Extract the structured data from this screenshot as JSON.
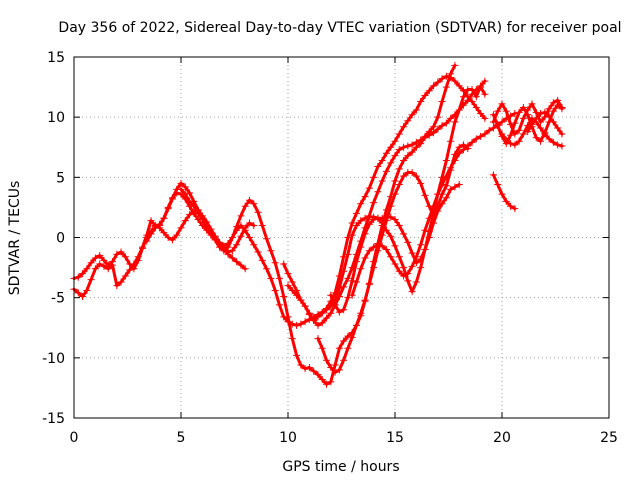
{
  "colors": {
    "series": "#ff0000",
    "grid": "#a0a0a0",
    "axis": "#000000",
    "background": "#ffffff"
  },
  "chart_data": {
    "type": "scatter",
    "title": "Day 356 of 2022, Sidereal Day-to-day VTEC variation (SDTVAR) for receiver poal",
    "xlabel": "GPS time / hours",
    "ylabel": "SDTVAR / TECUs",
    "xlim": [
      0,
      25
    ],
    "ylim": [
      -15,
      15
    ],
    "xticks": [
      0,
      5,
      10,
      15,
      20,
      25
    ],
    "yticks": [
      -15,
      -10,
      -5,
      0,
      5,
      10,
      15
    ],
    "grid": true,
    "marker": "+",
    "series": [
      {
        "name": "s1",
        "x": [
          0.0,
          0.2,
          0.4,
          0.6,
          0.8,
          1.0,
          1.2,
          1.4,
          1.6,
          1.8,
          2.0,
          2.2,
          2.4,
          2.6,
          2.8,
          3.0,
          3.2,
          3.4,
          3.6,
          3.8,
          4.0,
          4.2,
          4.4,
          4.6,
          4.8,
          5.0,
          5.2,
          5.4,
          5.6,
          5.8,
          6.0,
          6.2,
          6.4,
          6.6,
          6.8,
          7.0,
          7.2,
          7.4,
          7.6,
          7.8,
          8.0
        ],
        "y": [
          -3.4,
          -3.3,
          -3.0,
          -2.6,
          -2.1,
          -1.7,
          -1.5,
          -1.9,
          -2.3,
          -2.0,
          -1.4,
          -1.2,
          -1.6,
          -2.2,
          -2.6,
          -1.9,
          -0.9,
          0.0,
          0.5,
          0.9,
          1.0,
          1.6,
          2.5,
          3.3,
          3.7,
          3.6,
          3.2,
          2.6,
          2.0,
          1.5,
          1.0,
          0.6,
          0.2,
          -0.2,
          -0.6,
          -1.0,
          -1.4,
          -1.7,
          -2.0,
          -2.3,
          -2.6
        ]
      },
      {
        "name": "s2",
        "x": [
          0.0,
          0.2,
          0.4,
          0.6,
          0.8,
          1.0,
          1.2,
          1.4,
          1.6,
          1.8,
          2.0,
          2.2,
          2.4,
          2.6,
          2.8,
          3.0,
          3.2,
          3.4,
          3.6,
          3.8,
          4.0,
          4.2,
          4.4,
          4.6,
          4.8,
          5.0,
          5.2,
          5.4,
          5.6,
          5.8,
          6.0,
          6.2,
          6.4,
          6.6,
          6.8,
          7.0,
          7.2,
          7.4,
          7.6,
          7.8,
          8.0,
          8.2,
          8.4
        ],
        "y": [
          -4.3,
          -4.6,
          -4.9,
          -4.4,
          -3.5,
          -2.6,
          -2.2,
          -2.4,
          -2.6,
          -2.3,
          -4.0,
          -3.7,
          -3.2,
          -2.7,
          -2.2,
          -1.6,
          -0.8,
          0.2,
          1.4,
          1.0,
          0.8,
          0.4,
          0.0,
          -0.2,
          0.2,
          0.8,
          1.4,
          1.9,
          2.2,
          2.0,
          1.5,
          0.9,
          0.4,
          -0.1,
          -0.5,
          -0.9,
          -1.2,
          -1.1,
          -0.6,
          0.1,
          0.8,
          1.2,
          1.0
        ]
      },
      {
        "name": "s3",
        "x": [
          3.4,
          3.6,
          3.8,
          4.0,
          4.2,
          4.4,
          4.6,
          4.8,
          5.0,
          5.2,
          5.4,
          5.6,
          5.8,
          6.0,
          6.2,
          6.4,
          6.6,
          6.8,
          7.0,
          7.2,
          7.4,
          7.6,
          7.8,
          8.0,
          8.2,
          8.4,
          8.6,
          8.8,
          9.0,
          9.2,
          9.4,
          9.6,
          9.8,
          10.0,
          10.2,
          10.4,
          10.6,
          10.8,
          11.0,
          11.2,
          11.4,
          11.6,
          11.8,
          12.0,
          12.2,
          12.4,
          12.6,
          12.8,
          13.0,
          13.2,
          13.4,
          13.6,
          13.8,
          14.0,
          14.2,
          14.4,
          14.6,
          14.8,
          15.0,
          15.2,
          15.4,
          15.6,
          15.8,
          16.0,
          16.2,
          16.4,
          16.6,
          16.8,
          17.0,
          17.2,
          17.4,
          17.6,
          17.8
        ],
        "y": [
          -0.3,
          0.3,
          0.8,
          1.1,
          1.6,
          2.4,
          3.2,
          4.0,
          4.5,
          4.2,
          3.7,
          3.0,
          2.3,
          1.6,
          1.0,
          0.4,
          -0.2,
          -0.8,
          -1.1,
          -0.8,
          0.0,
          0.9,
          1.8,
          2.6,
          3.1,
          2.8,
          2.1,
          1.0,
          -0.1,
          -1.1,
          -2.1,
          -3.4,
          -4.9,
          -6.6,
          -8.4,
          -9.8,
          -10.6,
          -10.9,
          -10.8,
          -11.1,
          -11.4,
          -11.8,
          -12.2,
          -12.0,
          -10.6,
          -9.2,
          -8.6,
          -8.2,
          -7.9,
          -7.3,
          -6.5,
          -5.3,
          -3.8,
          -2.0,
          -0.5,
          1.0,
          2.3,
          3.4,
          4.7,
          5.7,
          6.4,
          6.8,
          7.1,
          7.5,
          7.8,
          8.4,
          8.8,
          9.2,
          10.0,
          11.3,
          12.5,
          13.6,
          14.3
        ]
      },
      {
        "name": "s4",
        "x": [
          5.0,
          5.2,
          5.4,
          5.6,
          5.8,
          6.0,
          6.2,
          6.4,
          6.6,
          6.8,
          7.0,
          7.2,
          7.4,
          7.6,
          7.8,
          8.0,
          8.2,
          8.4,
          8.6,
          8.8,
          9.0,
          9.2,
          9.4,
          9.6,
          9.8,
          10.0,
          10.2,
          10.4,
          10.6,
          10.8,
          11.0,
          11.2,
          11.4,
          11.6,
          11.8,
          12.0,
          12.2,
          12.4,
          12.6,
          12.8,
          13.0,
          13.2,
          13.4,
          13.6,
          13.8,
          14.0,
          14.2,
          14.4,
          14.6,
          14.8,
          15.0,
          15.2,
          15.4,
          15.6,
          15.8,
          16.0,
          16.2,
          16.4,
          16.6,
          16.8,
          17.0,
          17.2,
          17.4,
          17.6,
          17.8,
          18.0,
          18.2,
          18.4,
          18.6,
          18.8,
          19.0,
          19.2
        ],
        "y": [
          4.0,
          3.6,
          3.0,
          2.6,
          2.2,
          1.8,
          1.3,
          0.7,
          0.1,
          -0.4,
          -0.7,
          -0.5,
          0.0,
          0.6,
          1.0,
          0.6,
          0.0,
          -0.6,
          -1.2,
          -1.9,
          -2.6,
          -3.4,
          -4.4,
          -5.6,
          -6.6,
          -7.0,
          -7.2,
          -7.3,
          -7.2,
          -7.0,
          -6.8,
          -6.6,
          -6.4,
          -6.2,
          -6.0,
          -5.7,
          -5.2,
          -4.2,
          -2.8,
          -1.4,
          0.2,
          1.0,
          1.4,
          1.6,
          1.7,
          1.7,
          1.6,
          1.2,
          0.6,
          0.1,
          -0.7,
          -1.6,
          -2.5,
          -3.6,
          -4.5,
          -3.7,
          -2.5,
          -1.0,
          0.5,
          2.0,
          3.6,
          5.0,
          6.4,
          8.0,
          9.6,
          10.6,
          11.7,
          12.3,
          12.3,
          11.7,
          12.6,
          13.0
        ]
      },
      {
        "name": "s5",
        "x": [
          9.8,
          10.0,
          10.2,
          10.4,
          10.6,
          10.8,
          11.0,
          11.2,
          11.4,
          11.6,
          11.8,
          12.0,
          12.2,
          12.4,
          12.6,
          12.8,
          13.0,
          13.2,
          13.4,
          13.6,
          13.8,
          14.0,
          14.2,
          14.4,
          14.6,
          14.8,
          15.0,
          15.2,
          15.4,
          15.6,
          15.8,
          16.0,
          16.2,
          16.4,
          16.6,
          16.8,
          17.0,
          17.2,
          17.4,
          17.6,
          17.8,
          18.0,
          18.2,
          18.4,
          18.6,
          18.8,
          19.0,
          19.2
        ],
        "y": [
          -2.2,
          -3.0,
          -3.7,
          -4.4,
          -5.2,
          -5.7,
          -6.4,
          -6.9,
          -6.6,
          -6.3,
          -5.9,
          -5.3,
          -4.6,
          -3.2,
          -1.6,
          0.0,
          1.2,
          2.0,
          2.8,
          3.4,
          4.1,
          5.0,
          5.9,
          6.4,
          7.0,
          7.5,
          8.0,
          8.6,
          9.2,
          9.7,
          10.2,
          10.6,
          11.3,
          11.8,
          12.2,
          12.6,
          12.9,
          13.2,
          13.4,
          13.3,
          13.0,
          12.6,
          12.2,
          11.7,
          11.3,
          10.8,
          10.3,
          9.9
        ]
      },
      {
        "name": "s6",
        "x": [
          10.0,
          10.2,
          10.4,
          10.6,
          10.8,
          11.0,
          11.2,
          11.4,
          11.6,
          11.8,
          12.0,
          12.2,
          12.4,
          12.6,
          12.8,
          13.0,
          13.2,
          13.4,
          13.6,
          13.8,
          14.0,
          14.2,
          14.4,
          14.6,
          14.8,
          15.0,
          15.2,
          15.4,
          15.6,
          15.8,
          16.0,
          16.2,
          16.4,
          16.6,
          16.8,
          17.0,
          17.2,
          17.4,
          17.6,
          17.8,
          18.0,
          18.2,
          18.4,
          18.6,
          18.8,
          19.0,
          19.2
        ],
        "y": [
          -4.0,
          -4.4,
          -4.8,
          -5.2,
          -5.7,
          -6.3,
          -6.9,
          -7.3,
          -7.1,
          -6.7,
          -6.3,
          -5.6,
          -4.9,
          -4.1,
          -3.4,
          -2.5,
          -1.4,
          -0.3,
          0.8,
          1.8,
          2.9,
          3.8,
          4.7,
          5.5,
          6.2,
          6.8,
          7.3,
          7.5,
          7.6,
          7.7,
          7.9,
          8.1,
          8.3,
          8.5,
          8.7,
          9.0,
          9.3,
          9.5,
          9.9,
          10.2,
          10.6,
          11.0,
          11.4,
          11.9,
          12.3,
          12.5,
          11.9
        ]
      },
      {
        "name": "s7",
        "x": [
          11.4,
          11.6,
          11.8,
          12.0,
          12.2,
          12.4,
          12.6,
          12.8,
          13.0,
          13.2,
          13.4,
          13.6,
          13.8,
          14.0,
          14.2,
          14.4,
          14.6,
          14.8,
          15.0,
          15.2,
          15.4,
          15.6,
          15.8,
          16.0,
          16.2,
          16.4,
          16.6,
          16.8,
          17.0,
          17.2,
          17.4,
          17.6,
          17.8,
          18.0,
          18.2,
          18.4
        ],
        "y": [
          -8.4,
          -9.2,
          -10.2,
          -10.8,
          -11.2,
          -11.0,
          -10.2,
          -9.2,
          -8.3,
          -7.3,
          -6.3,
          -5.2,
          -3.9,
          -2.5,
          -1.1,
          0.2,
          1.4,
          2.6,
          3.6,
          4.4,
          5.1,
          5.4,
          5.4,
          5.1,
          4.5,
          3.5,
          2.6,
          1.8,
          2.6,
          3.6,
          4.3,
          5.6,
          6.9,
          7.5,
          7.7,
          7.4
        ]
      },
      {
        "name": "s8",
        "x": [
          12.0,
          12.2,
          12.4,
          12.6,
          12.8,
          13.0,
          13.2,
          13.4,
          13.6,
          13.8,
          14.0,
          14.2,
          14.4,
          14.6,
          14.8,
          15.0,
          15.2,
          15.4,
          15.6,
          15.8,
          16.0,
          16.2,
          16.4,
          16.6,
          16.8,
          17.0,
          17.2,
          17.4,
          17.6,
          17.8,
          18.0
        ],
        "y": [
          -4.8,
          -5.6,
          -6.2,
          -6.0,
          -5.0,
          -3.6,
          -2.0,
          -0.8,
          0.3,
          1.1,
          1.5,
          1.6,
          1.6,
          1.7,
          1.7,
          1.5,
          1.0,
          0.3,
          -0.4,
          -1.3,
          -2.1,
          -1.8,
          -1.0,
          0.0,
          1.2,
          2.2,
          2.8,
          3.3,
          4.0,
          4.2,
          4.4
        ]
      },
      {
        "name": "s9",
        "x": [
          13.0,
          13.2,
          13.4,
          13.6,
          13.8,
          14.0,
          14.2,
          14.4,
          14.6,
          14.8,
          15.0,
          15.2,
          15.4,
          15.6,
          15.8,
          16.0,
          16.2,
          16.4,
          16.6,
          16.8,
          17.0,
          17.2,
          17.4,
          17.6,
          17.8,
          18.0,
          18.2,
          18.4,
          18.6,
          18.8,
          19.0,
          19.2,
          19.4,
          19.6,
          19.8,
          20.0,
          20.2,
          20.4,
          20.6
        ],
        "y": [
          -4.8,
          -3.7,
          -2.6,
          -1.7,
          -1.1,
          -0.8,
          -0.6,
          -0.7,
          -1.0,
          -1.6,
          -2.2,
          -2.8,
          -3.2,
          -3.0,
          -2.4,
          -1.6,
          -0.6,
          0.6,
          1.6,
          2.6,
          3.6,
          4.4,
          5.1,
          5.8,
          6.4,
          7.0,
          7.3,
          7.6,
          7.9,
          8.2,
          8.4,
          8.6,
          8.9,
          9.1,
          9.4,
          9.6,
          9.9,
          10.1,
          10.3
        ]
      },
      {
        "name": "s10",
        "x": [
          19.6,
          19.8,
          20.0,
          20.2,
          20.4,
          20.6,
          20.8,
          21.0,
          21.2,
          21.4,
          21.6,
          21.8,
          22.0,
          22.2,
          22.4,
          22.6,
          22.8
        ],
        "y": [
          10.2,
          9.3,
          8.4,
          7.8,
          8.5,
          9.5,
          10.4,
          10.8,
          10.2,
          9.2,
          8.3,
          8.0,
          8.7,
          9.6,
          10.5,
          11.0,
          10.7
        ]
      },
      {
        "name": "s11",
        "x": [
          19.6,
          19.8,
          20.0,
          20.2,
          20.4,
          20.6,
          20.8,
          21.0,
          21.2,
          21.4,
          21.6,
          21.8,
          22.0,
          22.2,
          22.4,
          22.6,
          22.8
        ],
        "y": [
          9.6,
          10.5,
          11.1,
          10.5,
          9.4,
          8.6,
          8.9,
          9.9,
          10.6,
          11.1,
          10.4,
          9.6,
          10.0,
          10.7,
          11.2,
          11.4,
          10.8
        ]
      },
      {
        "name": "s12",
        "x": [
          20.0,
          20.2,
          20.4,
          20.6,
          20.8,
          21.0,
          21.2,
          21.4,
          21.6,
          21.8,
          22.0,
          22.2,
          22.4,
          22.6,
          22.8
        ],
        "y": [
          8.6,
          8.1,
          7.8,
          7.7,
          8.0,
          8.6,
          9.3,
          9.9,
          9.6,
          9.1,
          8.6,
          8.2,
          7.9,
          7.7,
          7.6
        ]
      },
      {
        "name": "s13",
        "x": [
          21.2,
          21.4,
          21.6,
          21.8,
          22.0,
          22.2,
          22.4,
          22.6,
          22.8
        ],
        "y": [
          8.8,
          9.4,
          9.9,
          10.3,
          10.4,
          10.1,
          9.6,
          9.1,
          8.6
        ]
      },
      {
        "name": "s14",
        "x": [
          19.6,
          19.8,
          20.0,
          20.2,
          20.4,
          20.6
        ],
        "y": [
          5.2,
          4.4,
          3.6,
          3.0,
          2.6,
          2.4
        ]
      }
    ]
  }
}
